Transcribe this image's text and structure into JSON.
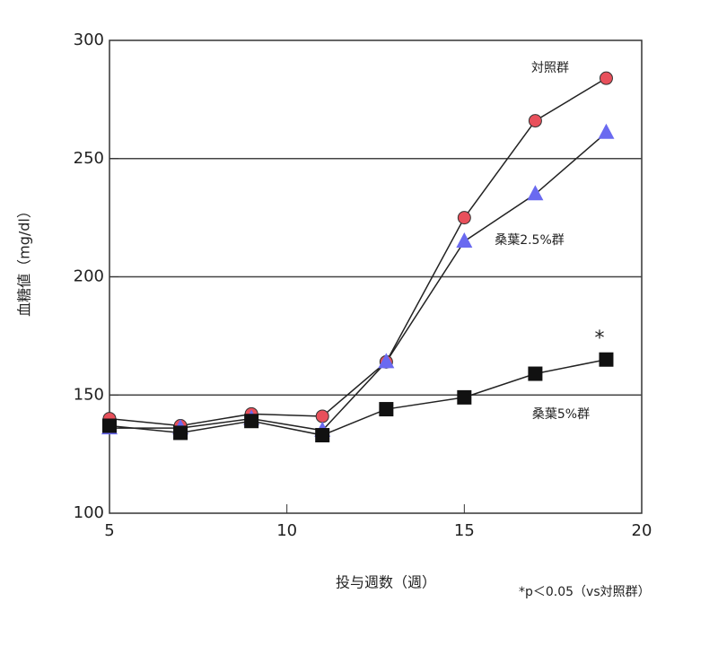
{
  "chart_data": {
    "type": "line",
    "x_label": "投与週数（週）",
    "y_label": "血糖値（mg/dl）",
    "x": [
      5,
      7,
      9,
      11,
      12.8,
      15,
      17,
      19
    ],
    "series": [
      {
        "name": "対照群",
        "color": "#e8505b",
        "marker": "circle",
        "values": [
          140,
          137,
          142,
          141,
          164,
          225,
          266,
          284
        ]
      },
      {
        "name": "桑葉2.5%群",
        "color": "#6a6af0",
        "marker": "triangle",
        "values": [
          136,
          136,
          140,
          135,
          164,
          215,
          235,
          261
        ]
      },
      {
        "name": "桑葉5%群",
        "color": "#111111",
        "marker": "square",
        "values": [
          137,
          134,
          139,
          133,
          144,
          149,
          159,
          165
        ]
      }
    ],
    "xlim": [
      5,
      20
    ],
    "xticks": [
      5,
      10,
      15,
      20
    ],
    "ylim": [
      100,
      300
    ],
    "yticks": [
      100,
      150,
      200,
      250,
      300
    ],
    "grid_lines": [
      150,
      200,
      250
    ],
    "significance_mark": "*",
    "footnote": "*p＜0.05（vs対照群）"
  }
}
